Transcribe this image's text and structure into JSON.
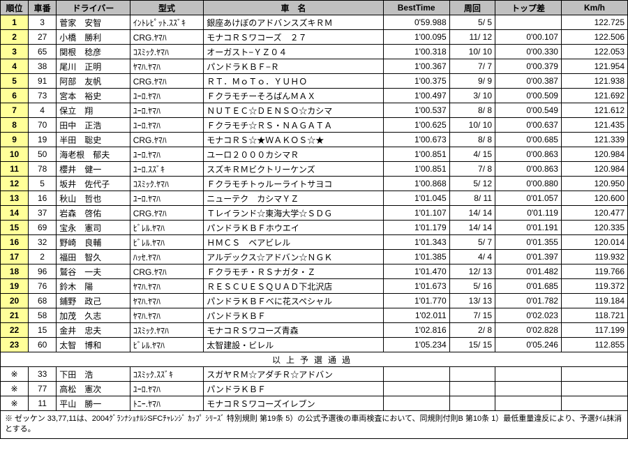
{
  "headers": [
    "順位",
    "車番",
    "ドライバー",
    "型式",
    "車　名",
    "BestTime",
    "周回",
    "トップ差",
    "Km/h"
  ],
  "rows": [
    {
      "rank": "1",
      "num": "3",
      "driver": "菅家　安智",
      "model": "ｲﾝﾄﾚﾋﾟｯﾄ.ｽｽﾞｷ",
      "car": "銀座あけぼのアドバンスズキＲＭ",
      "best": "0'59.988",
      "laps": "5/ 5",
      "gap": "",
      "kmh": "122.725"
    },
    {
      "rank": "2",
      "num": "27",
      "driver": "小橋　勝利",
      "model": "CRG.ﾔﾏﾊ",
      "car": "モナコＲＳワコーズ　２７",
      "best": "1'00.095",
      "laps": "11/ 12",
      "gap": "0'00.107",
      "kmh": "122.506"
    },
    {
      "rank": "3",
      "num": "65",
      "driver": "関根　稔彦",
      "model": "ｺｽﾐｯｸ.ﾔﾏﾊ",
      "car": "オーガスト−ＹＺ０４",
      "best": "1'00.318",
      "laps": "10/ 10",
      "gap": "0'00.330",
      "kmh": "122.053"
    },
    {
      "rank": "4",
      "num": "38",
      "driver": "尾川　正明",
      "model": "ﾔﾏﾊ.ﾔﾏﾊ",
      "car": "パンドラＫＢＦ−Ｒ",
      "best": "1'00.367",
      "laps": "7/ 7",
      "gap": "0'00.379",
      "kmh": "121.954"
    },
    {
      "rank": "5",
      "num": "91",
      "driver": "阿部　友帆",
      "model": "CRG.ﾔﾏﾊ",
      "car": "ＲＴ．ＭｏＴｏ．ＹＵＨＯ",
      "best": "1'00.375",
      "laps": "9/ 9",
      "gap": "0'00.387",
      "kmh": "121.938"
    },
    {
      "rank": "6",
      "num": "73",
      "driver": "宮本　裕史",
      "model": "ﾕｰﾛ.ﾔﾏﾊ",
      "car": "ＦクラモチーそろばんＭＡＸ",
      "best": "1'00.497",
      "laps": "3/ 10",
      "gap": "0'00.509",
      "kmh": "121.692"
    },
    {
      "rank": "7",
      "num": "4",
      "driver": "保立　翔",
      "model": "ﾕｰﾛ.ﾔﾏﾊ",
      "car": "ＮＵＴＥＣ☆ＤＥＮＳＯ☆カシマ",
      "best": "1'00.537",
      "laps": "8/ 8",
      "gap": "0'00.549",
      "kmh": "121.612"
    },
    {
      "rank": "8",
      "num": "70",
      "driver": "田中　正浩",
      "model": "ﾕｰﾛ.ﾔﾏﾊ",
      "car": "Ｆクラモチ☆ＲＳ・ＮＡＧＡＴＡ",
      "best": "1'00.625",
      "laps": "10/ 10",
      "gap": "0'00.637",
      "kmh": "121.435"
    },
    {
      "rank": "9",
      "num": "19",
      "driver": "半田　聡史",
      "model": "CRG.ﾔﾏﾊ",
      "car": "モナコＲＳ☆★ＷＡＫＯＳ☆★",
      "best": "1'00.673",
      "laps": "8/ 8",
      "gap": "0'00.685",
      "kmh": "121.339"
    },
    {
      "rank": "10",
      "num": "50",
      "driver": "海老根　郁夫",
      "model": "ﾕｰﾛ.ﾔﾏﾊ",
      "car": "ユーロ２０００カシマＲ",
      "best": "1'00.851",
      "laps": "4/ 15",
      "gap": "0'00.863",
      "kmh": "120.984"
    },
    {
      "rank": "11",
      "num": "78",
      "driver": "櫻井　健一",
      "model": "ﾕｰﾛ.ｽｽﾞｷ",
      "car": "スズキＲＭビクトリーケンズ",
      "best": "1'00.851",
      "laps": "7/ 8",
      "gap": "0'00.863",
      "kmh": "120.984"
    },
    {
      "rank": "12",
      "num": "5",
      "driver": "坂井　佐代子",
      "model": "ｺｽﾐｯｸ.ﾔﾏﾊ",
      "car": "Ｆクラモチトゥルーライトサヨコ",
      "best": "1'00.868",
      "laps": "5/ 12",
      "gap": "0'00.880",
      "kmh": "120.950"
    },
    {
      "rank": "13",
      "num": "16",
      "driver": "秋山　哲也",
      "model": "ﾕｰﾛ.ﾔﾏﾊ",
      "car": "ニューテク　カシマＹＺ",
      "best": "1'01.045",
      "laps": "8/ 11",
      "gap": "0'01.057",
      "kmh": "120.600"
    },
    {
      "rank": "14",
      "num": "37",
      "driver": "岩森　啓佑",
      "model": "CRG.ﾔﾏﾊ",
      "car": "Ｔレイランド☆東海大学☆ＳＤＧ",
      "best": "1'01.107",
      "laps": "14/ 14",
      "gap": "0'01.119",
      "kmh": "120.477"
    },
    {
      "rank": "15",
      "num": "69",
      "driver": "宝永　憲司",
      "model": "ﾋﾞﾚﾙ.ﾔﾏﾊ",
      "car": "パンドラＫＢＦホウエイ",
      "best": "1'01.179",
      "laps": "14/ 14",
      "gap": "0'01.191",
      "kmh": "120.335"
    },
    {
      "rank": "16",
      "num": "32",
      "driver": "野崎　良輔",
      "model": "ﾋﾞﾚﾙ.ﾔﾏﾊ",
      "car": "ＨＭＣＳ　ベアビレル",
      "best": "1'01.343",
      "laps": "5/ 7",
      "gap": "0'01.355",
      "kmh": "120.014"
    },
    {
      "rank": "17",
      "num": "2",
      "driver": "福田　智久",
      "model": "ﾊｯｾ.ﾔﾏﾊ",
      "car": "アルデックス☆アドバン☆ＮＧＫ",
      "best": "1'01.385",
      "laps": "4/ 4",
      "gap": "0'01.397",
      "kmh": "119.932"
    },
    {
      "rank": "18",
      "num": "96",
      "driver": "鷲谷　一夫",
      "model": "CRG.ﾔﾏﾊ",
      "car": "Ｆクラモチ・ＲＳナガタ・Ｚ",
      "best": "1'01.470",
      "laps": "12/ 13",
      "gap": "0'01.482",
      "kmh": "119.766"
    },
    {
      "rank": "19",
      "num": "76",
      "driver": "鈴木　陽",
      "model": "ﾔﾏﾊ.ﾔﾏﾊ",
      "car": "ＲＥＳＣＵＥＳＱＵＡＤ下北沢店",
      "best": "1'01.673",
      "laps": "5/ 16",
      "gap": "0'01.685",
      "kmh": "119.372"
    },
    {
      "rank": "20",
      "num": "68",
      "driver": "鋪野　政己",
      "model": "ﾔﾏﾊ.ﾔﾏﾊ",
      "car": "パンドラＫＢＦべに花スペシャル",
      "best": "1'01.770",
      "laps": "13/ 13",
      "gap": "0'01.782",
      "kmh": "119.184"
    },
    {
      "rank": "21",
      "num": "58",
      "driver": "加茂　久志",
      "model": "ﾔﾏﾊ.ﾔﾏﾊ",
      "car": "パンドラＫＢＦ",
      "best": "1'02.011",
      "laps": "7/ 15",
      "gap": "0'02.023",
      "kmh": "118.721"
    },
    {
      "rank": "22",
      "num": "15",
      "driver": "金井　忠夫",
      "model": "ｺｽﾐｯｸ.ﾔﾏﾊ",
      "car": "モナコＲＳワコーズ青森",
      "best": "1'02.816",
      "laps": "2/ 8",
      "gap": "0'02.828",
      "kmh": "117.199"
    },
    {
      "rank": "23",
      "num": "60",
      "driver": "太智　博和",
      "model": "ﾋﾞﾚﾙ.ﾔﾏﾊ",
      "car": "太智建設・ビレル",
      "best": "1'05.234",
      "laps": "15/ 15",
      "gap": "0'05.246",
      "kmh": "112.855"
    }
  ],
  "sep": "以上予選通過",
  "dq": [
    {
      "rank": "※",
      "num": "33",
      "driver": "下田　浩",
      "model": "ｺｽﾐｯｸ.ｽｽﾞｷ",
      "car": "スガヤＲＭ☆アダチＲ☆アドバン"
    },
    {
      "rank": "※",
      "num": "77",
      "driver": "高松　憲次",
      "model": "ﾕｰﾛ.ﾔﾏﾊ",
      "car": "パンドラＫＢＦ"
    },
    {
      "rank": "※",
      "num": "11",
      "driver": "平山　勝一",
      "model": "ﾄﾆｰ.ﾔﾏﾊ",
      "car": "モナコＲＳワコーズイレブン"
    }
  ],
  "note": "※ ゼッケン 33,77,11は、2004ｸﾞﾗﾝﾅｼｮﾅﾙｼSFCﾁｬﾚﾝｼﾞ ｶｯﾌﾟ ｼﾘｰｽﾞ 特別規則 第19条 5）の公式予選後の車両検査において、同規則付則B 第10条 1）最低重量違反により、予選ﾀｲﾑ抹消とする。"
}
